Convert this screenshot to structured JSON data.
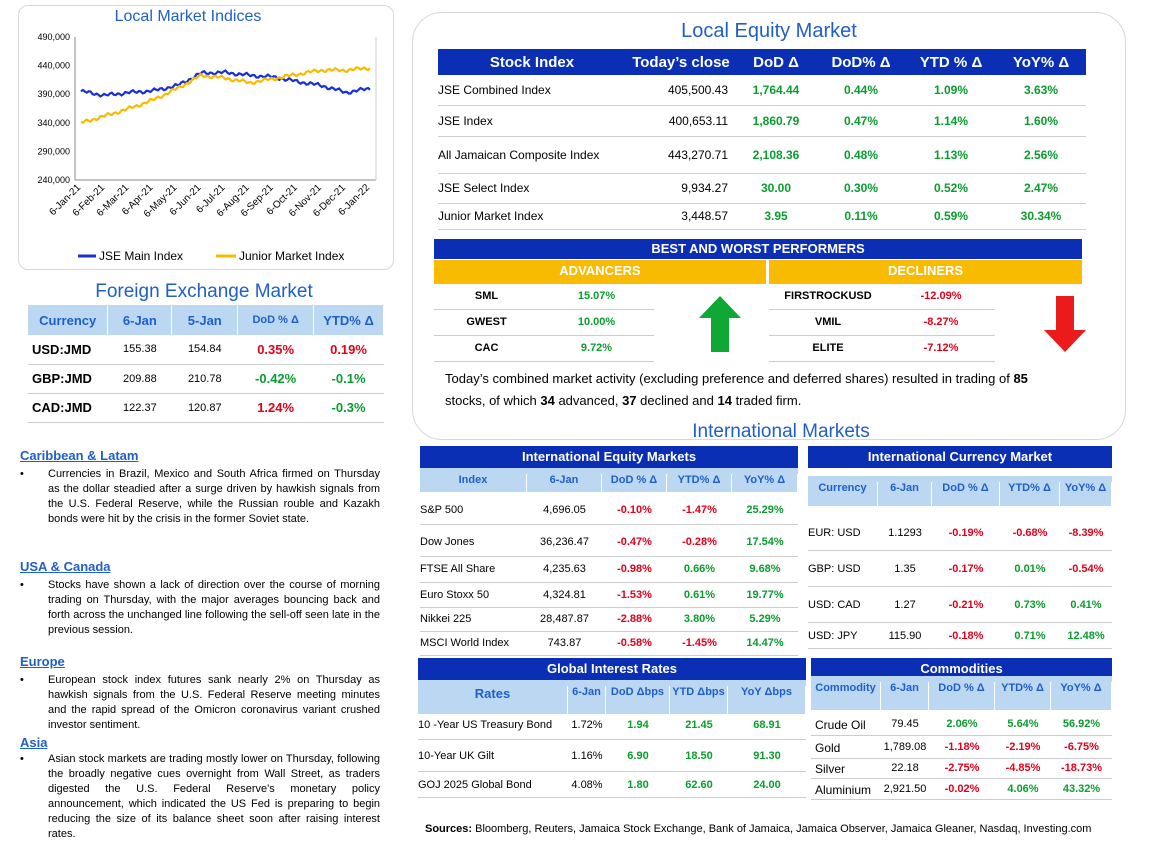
{
  "chart": {
    "title": "Local Market Indices",
    "y_ticks": [
      "490,000",
      "440,000",
      "390,000",
      "340,000",
      "290,000",
      "240,000"
    ],
    "x_ticks": [
      "6-Jan-21",
      "6-Feb-21",
      "6-Mar-21",
      "6-Apr-21",
      "6-May-21",
      "6-Jun-21",
      "6-Jul-21",
      "6-Aug-21",
      "6-Sep-21",
      "6-Oct-21",
      "6-Nov-21",
      "6-Dec-21",
      "6-Jan-22"
    ],
    "legend_main": "JSE Main Index",
    "legend_junior": "Junior Market Index",
    "color_main": "#1a2fd6",
    "color_junior": "#f8bb00"
  },
  "chart_data": {
    "type": "line",
    "title": "Local Market Indices",
    "x": [
      "6-Jan-21",
      "6-Feb-21",
      "6-Mar-21",
      "6-Apr-21",
      "6-May-21",
      "6-Jun-21",
      "6-Jul-21",
      "6-Aug-21",
      "6-Sep-21",
      "6-Oct-21",
      "6-Nov-21",
      "6-Dec-21",
      "6-Jan-22"
    ],
    "ylim": [
      240000,
      490000
    ],
    "series": [
      {
        "name": "JSE Main Index",
        "values": [
          395000,
          388000,
          393000,
          396000,
          405000,
          427000,
          428000,
          423000,
          420000,
          412000,
          405000,
          393000,
          400000
        ]
      },
      {
        "name": "Junior Market Index",
        "values": [
          340000,
          352000,
          365000,
          380000,
          400000,
          423000,
          418000,
          410000,
          417000,
          425000,
          432000,
          432000,
          436000
        ]
      }
    ],
    "legend": "bottom"
  },
  "equity": {
    "title": "Local Equity Market",
    "headers": [
      "Stock Index",
      "Today’s close",
      "DoD  Δ",
      "DoD% Δ",
      "YTD % Δ",
      "YoY% Δ"
    ],
    "rows": [
      {
        "name": "JSE Combined Index",
        "close": "405,500.43",
        "dod": "1,764.44",
        "dodp": "0.44%",
        "ytd": "1.09%",
        "yoy": "3.63%"
      },
      {
        "name": "JSE Index",
        "close": "400,653.11",
        "dod": "1,860.79",
        "dodp": "0.47%",
        "ytd": "1.14%",
        "yoy": "1.60%"
      },
      {
        "name": "All Jamaican Composite Index",
        "close": "443,270.71",
        "dod": "2,108.36",
        "dodp": "0.48%",
        "ytd": "1.13%",
        "yoy": "2.56%"
      },
      {
        "name": "JSE Select Index",
        "close": "9,934.27",
        "dod": "30.00",
        "dodp": "0.30%",
        "ytd": "0.52%",
        "yoy": "2.47%"
      },
      {
        "name": "Junior Market Index",
        "close": "3,448.57",
        "dod": "3.95",
        "dodp": "0.11%",
        "ytd": "0.59%",
        "yoy": "30.34%"
      }
    ]
  },
  "performers": {
    "title": "BEST AND WORST PERFORMERS",
    "advancers_label": "ADVANCERS",
    "decliners_label": "DECLINERS",
    "advancers": [
      {
        "name": "SML",
        "value": "15.07%"
      },
      {
        "name": "GWEST",
        "value": "10.00%"
      },
      {
        "name": "CAC",
        "value": "9.72%"
      }
    ],
    "decliners": [
      {
        "name": "FIRSTROCKUSD",
        "value": "-12.09%"
      },
      {
        "name": "VMIL",
        "value": "-8.27%"
      },
      {
        "name": "ELITE",
        "value": "-7.12%"
      }
    ]
  },
  "summary": {
    "p1": "Today’s combined market activity (excluding preference and deferred shares) resulted in trading of ",
    "n1": "85",
    "p2": "stocks, of which ",
    "n2": "34",
    "p3": " advanced, ",
    "n3": "37",
    "p4": " declined and ",
    "n4": "14",
    "p5": " traded firm."
  },
  "fx": {
    "title": "Foreign Exchange Market",
    "headers": [
      "Currency",
      "6-Jan",
      "5-Jan",
      "DoD % Δ",
      "YTD% Δ"
    ],
    "rows": [
      {
        "cur": "USD:JMD",
        "a": "155.38",
        "b": "154.84",
        "dod": "0.35%",
        "ytd": "0.19%"
      },
      {
        "cur": "GBP:JMD",
        "a": "209.88",
        "b": "210.78",
        "dod": "-0.42%",
        "ytd": "-0.1%"
      },
      {
        "cur": "CAD:JMD",
        "a": "122.37",
        "b": "120.87",
        "dod": "1.24%",
        "ytd": "-0.3%"
      }
    ]
  },
  "news": [
    {
      "heading": "Caribbean & Latam",
      "text": "Currencies in Brazil, Mexico and South Africa firmed on Thursday as the dollar steadied after a surge driven by hawkish signals from the U.S. Federal Reserve, while the Russian rouble and Kazakh bonds were hit by the crisis in the former Soviet state."
    },
    {
      "heading": "USA & Canada",
      "text": "Stocks have shown a lack of direction over the course of morning trading on Thursday, with the major averages bouncing back and forth across the unchanged line following the sell-off seen late in the previous session."
    },
    {
      "heading": "Europe",
      "text": "European stock index futures sank nearly 2% on Thursday as hawkish signals from the U.S. Federal Reserve meeting minutes and the rapid spread of the Omicron coronavirus variant crushed investor sentiment."
    },
    {
      "heading": "Asia",
      "text": "Asian stock markets are trading mostly lower on Thursday, following the broadly negative cues overnight from Wall Street, as traders digested the U.S. Federal Reserve's monetary policy announcement, which indicated the US Fed is preparing to begin reducing the size of its balance sheet soon after raising interest rates."
    }
  ],
  "intl": {
    "title": "International Markets",
    "equity": {
      "title": "International Equity Markets",
      "headers": [
        "Index",
        "6-Jan",
        "DoD % Δ",
        "YTD% Δ",
        "YoY% Δ"
      ],
      "rows": [
        {
          "name": "S&P 500",
          "v": "4,696.05",
          "dod": "-0.10%",
          "ytd": "-1.47%",
          "yoy": "25.29%"
        },
        {
          "name": "Dow Jones",
          "v": "36,236.47",
          "dod": "-0.47%",
          "ytd": "-0.28%",
          "yoy": "17.54%"
        },
        {
          "name": "FTSE All Share",
          "v": "4,235.63",
          "dod": "-0.98%",
          "ytd": "0.66%",
          "yoy": "9.68%"
        },
        {
          "name": "Euro Stoxx 50",
          "v": "4,324.81",
          "dod": "-1.53%",
          "ytd": "0.61%",
          "yoy": "19.77%"
        },
        {
          "name": "Nikkei 225",
          "v": "28,487.87",
          "dod": "-2.88%",
          "ytd": "3.80%",
          "yoy": "5.29%"
        },
        {
          "name": "MSCI World Index",
          "v": "743.87",
          "dod": "-0.58%",
          "ytd": "-1.45%",
          "yoy": "14.47%"
        }
      ]
    },
    "currency": {
      "title": "International Currency Market",
      "headers": [
        "Currency",
        "6-Jan",
        "DoD % Δ",
        "YTD% Δ",
        "YoY% Δ"
      ],
      "rows": [
        {
          "name": "EUR: USD",
          "v": "1.1293",
          "dod": "-0.19%",
          "ytd": "-0.68%",
          "yoy": "-8.39%"
        },
        {
          "name": "GBP: USD",
          "v": "1.35",
          "dod": "-0.17%",
          "ytd": "0.01%",
          "yoy": "-0.54%"
        },
        {
          "name": "USD: CAD",
          "v": "1.27",
          "dod": "-0.21%",
          "ytd": "0.73%",
          "yoy": "0.41%"
        },
        {
          "name": "USD: JPY",
          "v": "115.90",
          "dod": "-0.18%",
          "ytd": "0.71%",
          "yoy": "12.48%"
        }
      ]
    },
    "rates": {
      "title": "Global Interest Rates",
      "headers": [
        "Rates",
        "6-Jan",
        "DoD Δbps",
        "YTD Δbps",
        "YoY Δbps"
      ],
      "rows": [
        {
          "name": "10 -Year US Treasury Bond",
          "v": "1.72%",
          "dod": "1.94",
          "ytd": "21.45",
          "yoy": "68.91"
        },
        {
          "name": "10-Year UK Gilt",
          "v": "1.16%",
          "dod": "6.90",
          "ytd": "18.50",
          "yoy": "91.30"
        },
        {
          "name": "GOJ 2025 Global Bond",
          "v": "4.08%",
          "dod": "1.80",
          "ytd": "62.60",
          "yoy": "24.00"
        }
      ]
    },
    "commodities": {
      "title": "Commodities",
      "headers": [
        "Commodity",
        "6-Jan",
        "DoD % Δ",
        "YTD% Δ",
        "YoY% Δ"
      ],
      "rows": [
        {
          "name": "Crude Oil",
          "v": "79.45",
          "dod": "2.06%",
          "ytd": "5.64%",
          "yoy": "56.92%"
        },
        {
          "name": "Gold",
          "v": "1,789.08",
          "dod": "-1.18%",
          "ytd": "-2.19%",
          "yoy": "-6.75%"
        },
        {
          "name": "Silver",
          "v": "22.18",
          "dod": "-2.75%",
          "ytd": "-4.85%",
          "yoy": "-18.73%"
        },
        {
          "name": "Aluminium",
          "v": "2,921.50",
          "dod": "-0.02%",
          "ytd": "4.06%",
          "yoy": "43.32%"
        }
      ]
    }
  },
  "sources": {
    "label": "Sources:",
    "text": " Bloomberg, Reuters, Jamaica Stock Exchange, Bank of Jamaica, Jamaica Observer, Jamaica Gleaner, Nasdaq, Investing.com"
  }
}
